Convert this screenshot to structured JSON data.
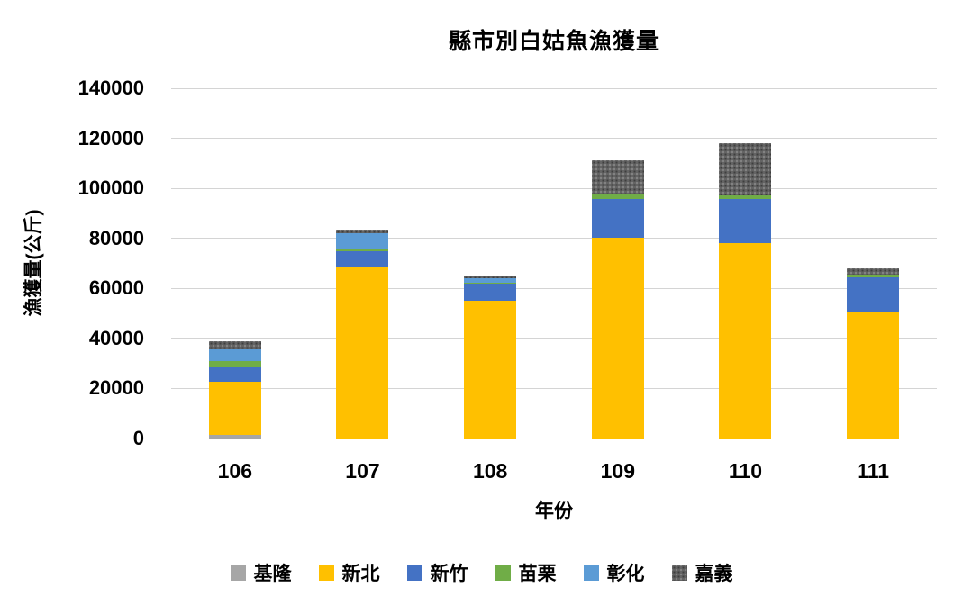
{
  "chart_data": {
    "type": "bar",
    "stacked": true,
    "title": "縣市別白姑魚漁獲量",
    "xlabel": "年份",
    "ylabel": "漁獲量(公斤)",
    "categories": [
      "106",
      "107",
      "108",
      "109",
      "110",
      "111"
    ],
    "series": [
      {
        "name": "基隆",
        "color": "#a6a6a6",
        "pattern": false,
        "values": [
          1400,
          0,
          0,
          0,
          0,
          0
        ]
      },
      {
        "name": "新北",
        "color": "#ffc000",
        "pattern": false,
        "values": [
          21200,
          68800,
          55200,
          80200,
          78200,
          50300
        ]
      },
      {
        "name": "新竹",
        "color": "#4472c4",
        "pattern": false,
        "values": [
          5800,
          6200,
          6600,
          15400,
          17400,
          14000
        ]
      },
      {
        "name": "苗栗",
        "color": "#70ad47",
        "pattern": false,
        "values": [
          2600,
          700,
          600,
          1800,
          1500,
          1300
        ]
      },
      {
        "name": "彰化",
        "color": "#5b9bd5",
        "pattern": false,
        "values": [
          4600,
          6500,
          1600,
          0,
          0,
          0
        ]
      },
      {
        "name": "嘉義",
        "color": "#646464",
        "pattern": true,
        "values": [
          3400,
          1200,
          1100,
          13700,
          21100,
          2300
        ]
      }
    ],
    "totals": [
      39000,
      83400,
      65100,
      111100,
      118200,
      67900
    ],
    "ylim": [
      0,
      140000
    ],
    "ytick_step": 20000,
    "yticks": [
      "0",
      "20000",
      "40000",
      "60000",
      "80000",
      "100000",
      "120000",
      "140000"
    ],
    "grid": true,
    "legend_position": "bottom",
    "gridline_color": "#d4d4d4"
  }
}
